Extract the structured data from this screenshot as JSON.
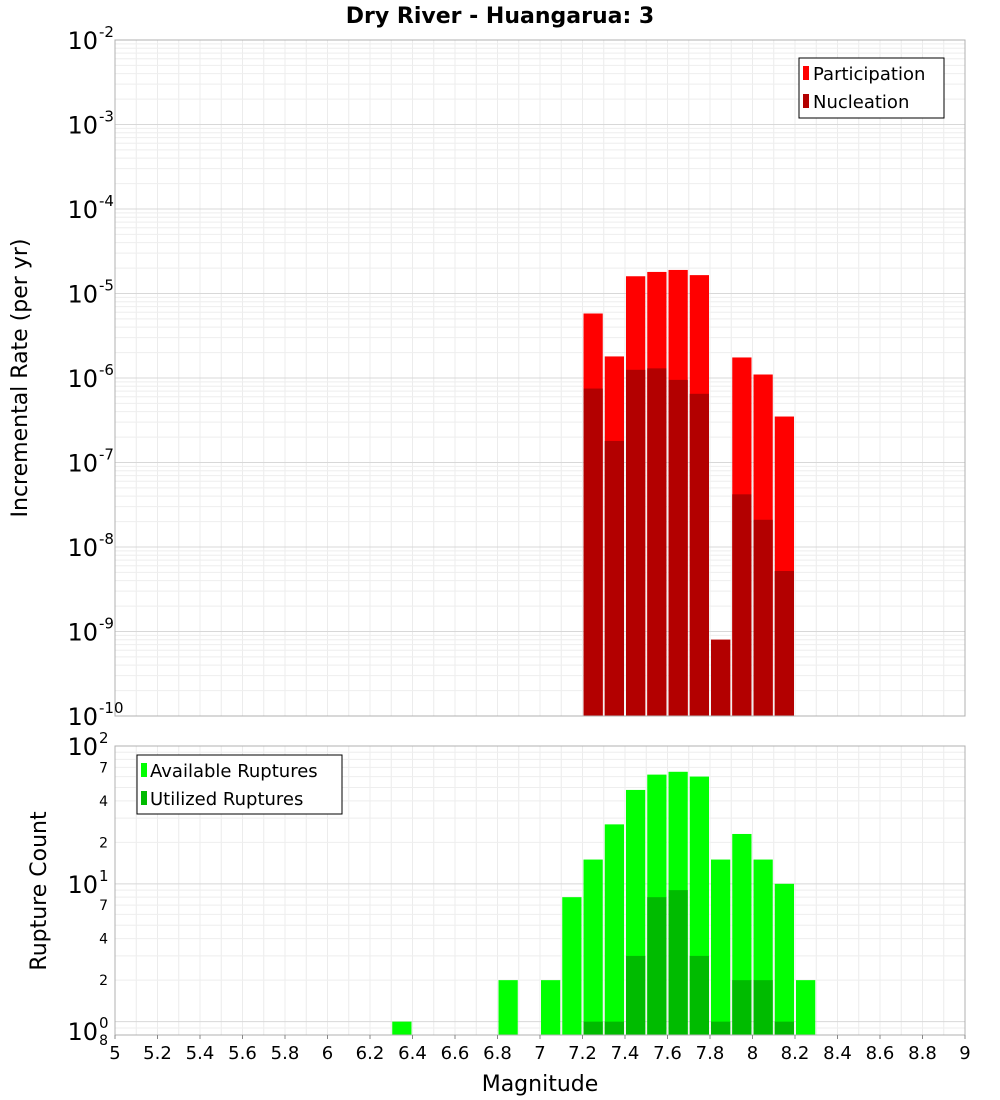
{
  "chart_data": [
    {
      "type": "bar",
      "title": "Dry River - Huangarua: 3",
      "xlabel": "",
      "ylabel": "Incremental Rate (per yr)",
      "y_scale": "log",
      "xlim": [
        5,
        9
      ],
      "ylim": [
        1e-10,
        0.01
      ],
      "bin_width": 0.1,
      "legend_position": "top-right",
      "y_ticks": [
        {
          "base": "10",
          "exp": "-2"
        },
        {
          "base": "10",
          "exp": "-3"
        },
        {
          "base": "10",
          "exp": "-4"
        },
        {
          "base": "10",
          "exp": "-5"
        },
        {
          "base": "10",
          "exp": "-6"
        },
        {
          "base": "10",
          "exp": "-7"
        },
        {
          "base": "10",
          "exp": "-8"
        },
        {
          "base": "10",
          "exp": "-9"
        },
        {
          "base": "10",
          "exp": "-10"
        }
      ],
      "x": [
        7.25,
        7.35,
        7.45,
        7.55,
        7.65,
        7.75,
        7.85,
        7.95,
        8.05,
        8.15
      ],
      "series": [
        {
          "name": "Participation",
          "color": "#ff0000",
          "values": [
            5.8e-06,
            1.8e-06,
            1.6e-05,
            1.8e-05,
            1.9e-05,
            1.65e-05,
            8e-10,
            1.75e-06,
            1.1e-06,
            3.5e-07
          ]
        },
        {
          "name": "Nucleation",
          "color": "#b30000",
          "values": [
            7.5e-07,
            1.8e-07,
            1.25e-06,
            1.3e-06,
            9.5e-07,
            6.5e-07,
            8e-10,
            4.2e-08,
            2.1e-08,
            5.2e-09
          ]
        }
      ]
    },
    {
      "type": "bar",
      "title": "",
      "xlabel": "Magnitude",
      "ylabel": "Rupture Count",
      "y_scale": "log",
      "xlim": [
        5,
        9
      ],
      "ylim": [
        0.8,
        100
      ],
      "bin_width": 0.1,
      "legend_position": "top-left",
      "x_ticks": [
        "5",
        "5.2",
        "5.4",
        "5.6",
        "5.8",
        "6",
        "6.2",
        "6.4",
        "6.6",
        "6.8",
        "7",
        "7.2",
        "7.4",
        "7.6",
        "7.8",
        "8",
        "8.2",
        "8.4",
        "8.6",
        "8.8",
        "9"
      ],
      "y_ticks": [
        {
          "base": "10",
          "exp": "2"
        },
        {
          "base": "10",
          "exp": "1"
        },
        {
          "base": "10",
          "exp": "0"
        }
      ],
      "y_minor_labels": [
        "7",
        "4",
        "2",
        "7",
        "4",
        "2",
        "8"
      ],
      "x": [
        6.35,
        6.85,
        7.05,
        7.15,
        7.25,
        7.35,
        7.45,
        7.55,
        7.65,
        7.75,
        7.85,
        7.95,
        8.05,
        8.15,
        8.25
      ],
      "series": [
        {
          "name": "Available Ruptures",
          "color": "#00ff00",
          "values": [
            1,
            2,
            2,
            8,
            15,
            27,
            48,
            62,
            65,
            60,
            15,
            23,
            15,
            10,
            2
          ]
        },
        {
          "name": "Utilized Ruptures",
          "color": "#00bb00",
          "values": [
            0,
            0,
            0,
            0,
            1,
            1,
            3,
            8,
            9,
            3,
            1,
            2,
            2,
            1,
            0
          ]
        }
      ]
    }
  ]
}
